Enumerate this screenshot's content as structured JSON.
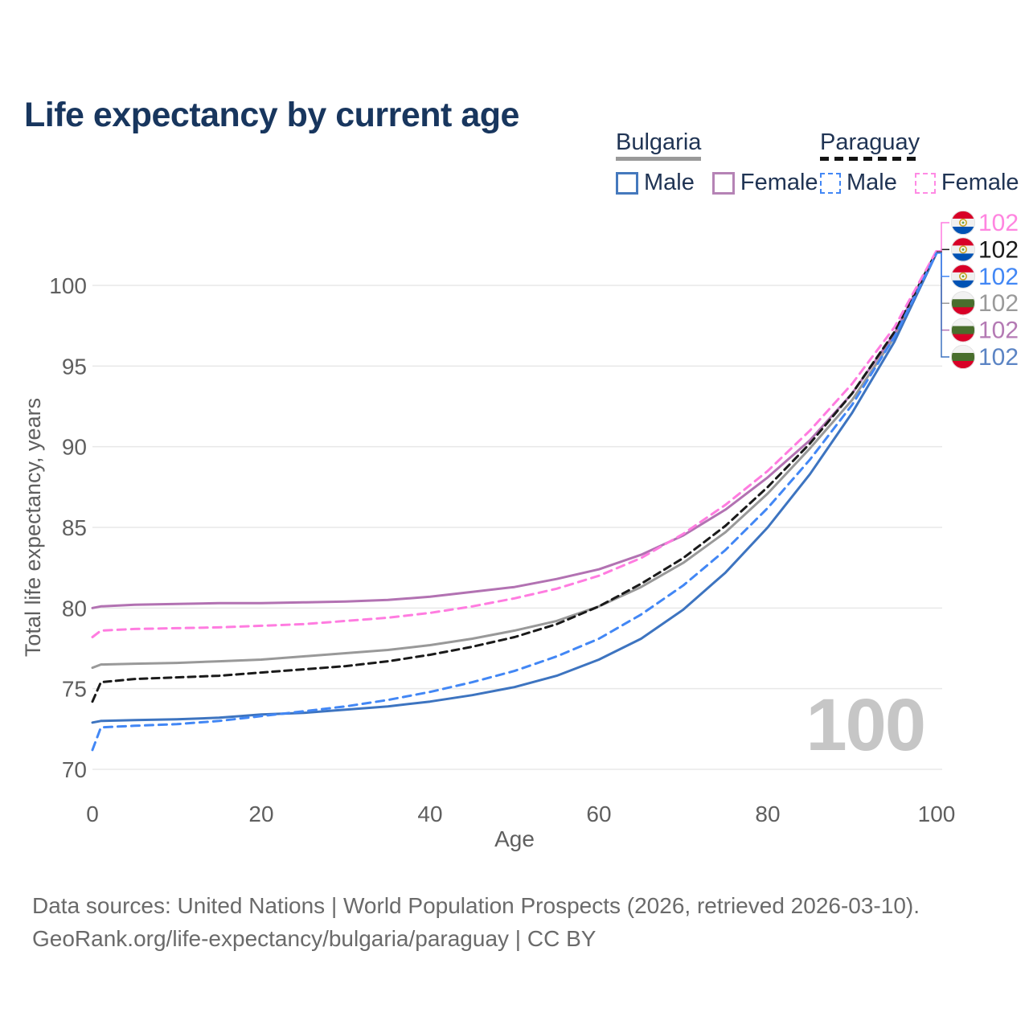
{
  "title": "Life expectancy by current age",
  "colors": {
    "title": "#18365e",
    "legend_text": "#203454",
    "axis_text": "#5f5f5f",
    "grid": "#e8e8e8",
    "watermark": "#c6c6c6",
    "footer_text": "#6a6a6a"
  },
  "legend": {
    "groups": [
      {
        "label": "Bulgaria",
        "line_style": "solid",
        "line_color": "#999999",
        "items": [
          {
            "label": "Male",
            "color": "#4579bd",
            "dashed": false
          },
          {
            "label": "Female",
            "color": "#b583b5",
            "dashed": false
          }
        ]
      },
      {
        "label": "Paraguay",
        "line_style": "dashed",
        "line_color": "#141414",
        "items": [
          {
            "label": "Male",
            "color": "#4287f5",
            "dashed": true
          },
          {
            "label": "Female",
            "color": "#ff8ae4",
            "dashed": true
          }
        ]
      }
    ]
  },
  "chart_data": {
    "type": "line",
    "title": "Life expectancy by current age",
    "xlabel": "Age",
    "ylabel": "Total life expectancy, years",
    "xlim": [
      0,
      100
    ],
    "ylim": [
      69,
      103
    ],
    "x_ticks": [
      0,
      20,
      40,
      60,
      80,
      100
    ],
    "y_ticks": [
      70,
      75,
      80,
      85,
      90,
      95,
      100
    ],
    "grid": "horizontal",
    "legend_position": "top-right",
    "x": [
      0,
      1,
      5,
      10,
      15,
      20,
      25,
      30,
      35,
      40,
      45,
      50,
      55,
      60,
      65,
      70,
      75,
      80,
      85,
      90,
      95,
      100
    ],
    "series": [
      {
        "name": "Bulgaria Both sexes",
        "country": "Bulgaria",
        "sex": "Both",
        "color": "#999999",
        "dash": false,
        "dasharray": "",
        "flag": "bg",
        "end_label": "102",
        "label_color": "#9a9a9a",
        "label_row": 3,
        "values": [
          76.3,
          76.5,
          76.55,
          76.6,
          76.7,
          76.8,
          77.0,
          77.2,
          77.4,
          77.7,
          78.1,
          78.6,
          79.2,
          80.1,
          81.3,
          82.8,
          84.7,
          87.1,
          89.9,
          92.9,
          96.8,
          102.05
        ]
      },
      {
        "name": "Bulgaria Female",
        "country": "Bulgaria",
        "sex": "Female",
        "color": "#b272b2",
        "dash": false,
        "dasharray": "",
        "flag": "bg",
        "end_label": "102",
        "label_color": "#b47ab4",
        "label_row": 4,
        "values": [
          80.0,
          80.1,
          80.2,
          80.25,
          80.3,
          80.3,
          80.35,
          80.4,
          80.5,
          80.7,
          81.0,
          81.3,
          81.8,
          82.4,
          83.3,
          84.5,
          86.1,
          88.1,
          90.4,
          93.3,
          97.0,
          102.1
        ]
      },
      {
        "name": "Bulgaria Male",
        "country": "Bulgaria",
        "sex": "Male",
        "color": "#3d74c0",
        "dash": false,
        "dasharray": "",
        "flag": "bg",
        "end_label": "102",
        "label_color": "#5b84c4",
        "label_row": 5,
        "values": [
          72.9,
          73.0,
          73.05,
          73.1,
          73.2,
          73.4,
          73.5,
          73.7,
          73.9,
          74.2,
          74.6,
          75.1,
          75.8,
          76.8,
          78.1,
          79.9,
          82.2,
          85.0,
          88.3,
          92.1,
          96.5,
          102.0
        ]
      },
      {
        "name": "Paraguay Both sexes",
        "country": "Paraguay",
        "sex": "Both",
        "color": "#1a1a1a",
        "dash": true,
        "dasharray": "9 6",
        "flag": "py",
        "end_label": "102",
        "label_color": "#1a1a1a",
        "label_row": 1,
        "values": [
          74.2,
          75.4,
          75.6,
          75.7,
          75.8,
          76.0,
          76.2,
          76.4,
          76.7,
          77.1,
          77.6,
          78.2,
          79.0,
          80.1,
          81.5,
          83.1,
          85.1,
          87.5,
          90.2,
          93.3,
          97.1,
          102.1
        ]
      },
      {
        "name": "Paraguay Female",
        "country": "Paraguay",
        "sex": "Female",
        "color": "#ff7ce0",
        "dash": true,
        "dasharray": "10 7",
        "flag": "py",
        "end_label": "102",
        "label_color": "#ff85e0",
        "label_row": 0,
        "values": [
          78.2,
          78.6,
          78.7,
          78.75,
          78.8,
          78.9,
          79.0,
          79.2,
          79.4,
          79.7,
          80.1,
          80.6,
          81.2,
          82.0,
          83.1,
          84.6,
          86.4,
          88.5,
          91.0,
          93.9,
          97.4,
          102.15
        ]
      },
      {
        "name": "Paraguay Male",
        "country": "Paraguay",
        "sex": "Male",
        "color": "#4287f5",
        "dash": true,
        "dasharray": "10 7",
        "flag": "py",
        "end_label": "102",
        "label_color": "#4287f5",
        "label_row": 2,
        "values": [
          71.2,
          72.6,
          72.7,
          72.8,
          73.0,
          73.3,
          73.6,
          73.9,
          74.3,
          74.8,
          75.4,
          76.1,
          77.0,
          78.1,
          79.6,
          81.4,
          83.6,
          86.2,
          89.2,
          92.6,
          96.8,
          102.0
        ]
      }
    ]
  },
  "flag_colors": {
    "py": [
      "#d80027",
      "#f0f0f0",
      "#0052b4"
    ],
    "bg": [
      "#f2f2f2",
      "#496e2d",
      "#d80027"
    ]
  },
  "watermark": {
    "text": "100"
  },
  "footer": {
    "line1": "Data sources: United Nations | World Population Prospects (2026, retrieved 2026-03-10).",
    "line2": "GeoRank.org/life-expectancy/bulgaria/paraguay | CC BY"
  }
}
